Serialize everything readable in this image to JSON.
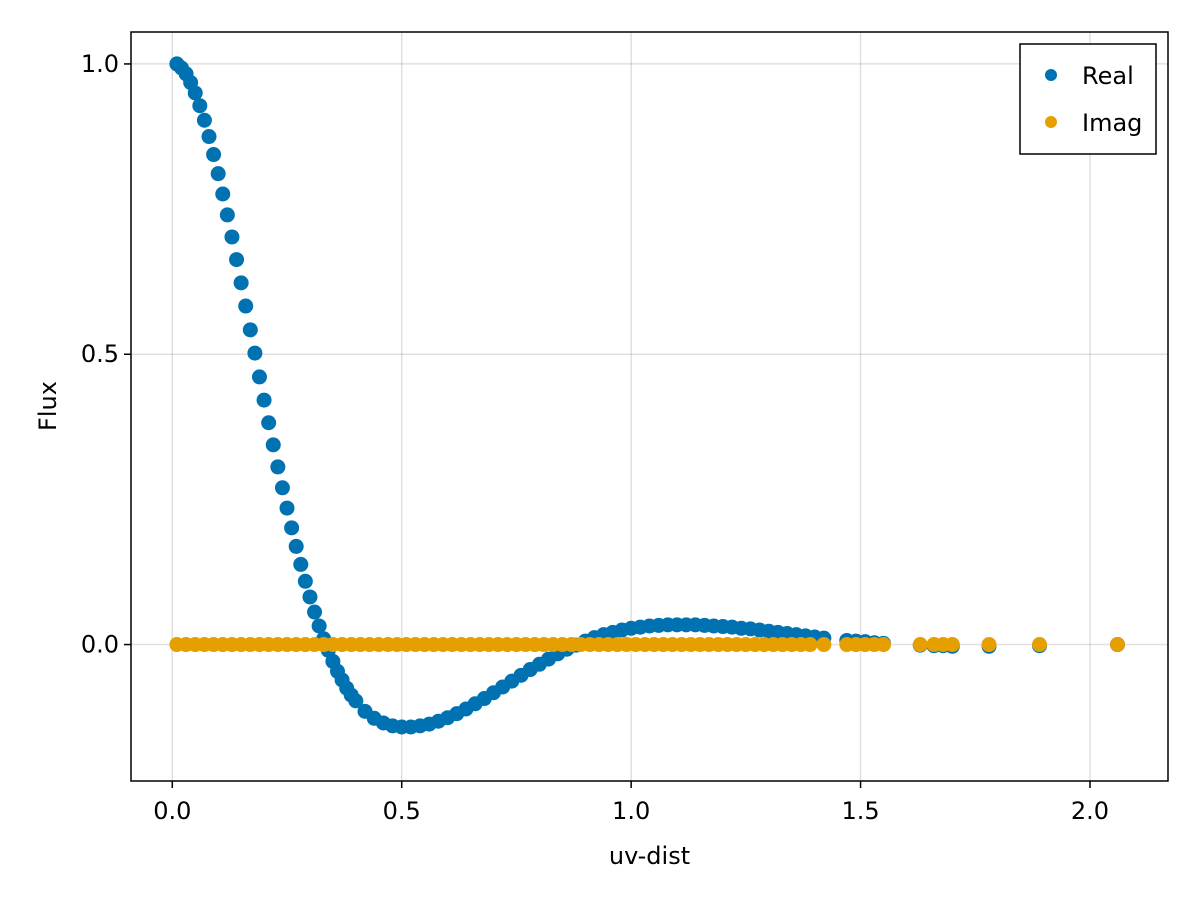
{
  "chart_data": {
    "type": "scatter",
    "title": "",
    "xlabel": "uv-dist",
    "ylabel": "Flux",
    "xlim": [
      -0.09,
      2.17
    ],
    "ylim": [
      -0.235,
      1.055
    ],
    "grid": true,
    "legend_position": "top-right",
    "x_ticks": [
      {
        "value": 0.0,
        "label": "0.0"
      },
      {
        "value": 0.5,
        "label": "0.5"
      },
      {
        "value": 1.0,
        "label": "1.0"
      },
      {
        "value": 1.5,
        "label": "1.5"
      },
      {
        "value": 2.0,
        "label": "2.0"
      }
    ],
    "y_ticks": [
      {
        "value": 0.0,
        "label": "0.0"
      },
      {
        "value": 0.5,
        "label": "0.5"
      },
      {
        "value": 1.0,
        "label": "1.0"
      }
    ],
    "series": [
      {
        "name": "Real",
        "color": "#0072b2",
        "x": [
          0.01,
          0.02,
          0.03,
          0.04,
          0.05,
          0.06,
          0.07,
          0.08,
          0.09,
          0.1,
          0.11,
          0.12,
          0.13,
          0.14,
          0.15,
          0.16,
          0.17,
          0.18,
          0.19,
          0.2,
          0.21,
          0.22,
          0.23,
          0.24,
          0.25,
          0.26,
          0.27,
          0.28,
          0.29,
          0.3,
          0.31,
          0.32,
          0.33,
          0.34,
          0.35,
          0.36,
          0.37,
          0.38,
          0.39,
          0.4,
          0.42,
          0.44,
          0.46,
          0.48,
          0.5,
          0.52,
          0.54,
          0.56,
          0.58,
          0.6,
          0.62,
          0.64,
          0.66,
          0.68,
          0.7,
          0.72,
          0.74,
          0.76,
          0.78,
          0.8,
          0.82,
          0.84,
          0.86,
          0.88,
          0.9,
          0.92,
          0.94,
          0.96,
          0.98,
          1.0,
          1.02,
          1.04,
          1.06,
          1.08,
          1.1,
          1.12,
          1.14,
          1.16,
          1.18,
          1.2,
          1.22,
          1.24,
          1.26,
          1.28,
          1.3,
          1.32,
          1.34,
          1.36,
          1.38,
          1.4,
          1.42,
          1.47,
          1.49,
          1.51,
          1.53,
          1.55,
          1.63,
          1.66,
          1.68,
          1.7,
          1.78,
          1.89,
          2.06
        ],
        "y": [
          1.0,
          0.993,
          0.983,
          0.968,
          0.95,
          0.928,
          0.903,
          0.875,
          0.844,
          0.811,
          0.776,
          0.74,
          0.702,
          0.663,
          0.623,
          0.583,
          0.542,
          0.502,
          0.461,
          0.421,
          0.382,
          0.344,
          0.306,
          0.27,
          0.235,
          0.201,
          0.169,
          0.138,
          0.109,
          0.082,
          0.056,
          0.032,
          0.01,
          -0.01,
          -0.029,
          -0.046,
          -0.061,
          -0.075,
          -0.087,
          -0.097,
          -0.115,
          -0.127,
          -0.135,
          -0.14,
          -0.142,
          -0.142,
          -0.14,
          -0.137,
          -0.132,
          -0.126,
          -0.119,
          -0.111,
          -0.102,
          -0.093,
          -0.083,
          -0.073,
          -0.063,
          -0.053,
          -0.043,
          -0.034,
          -0.025,
          -0.016,
          -0.008,
          -0.001,
          0.006,
          0.012,
          0.017,
          0.021,
          0.025,
          0.028,
          0.03,
          0.032,
          0.033,
          0.034,
          0.034,
          0.034,
          0.034,
          0.033,
          0.032,
          0.031,
          0.03,
          0.028,
          0.027,
          0.025,
          0.023,
          0.021,
          0.019,
          0.017,
          0.015,
          0.013,
          0.011,
          0.007,
          0.006,
          0.005,
          0.003,
          0.002,
          -0.001,
          -0.002,
          -0.002,
          -0.003,
          -0.003,
          -0.002,
          0.0
        ]
      },
      {
        "name": "Imag",
        "color": "#e69f00",
        "x": [
          0.01,
          0.03,
          0.05,
          0.07,
          0.09,
          0.11,
          0.13,
          0.15,
          0.17,
          0.19,
          0.21,
          0.23,
          0.25,
          0.27,
          0.29,
          0.31,
          0.33,
          0.35,
          0.37,
          0.39,
          0.41,
          0.43,
          0.45,
          0.47,
          0.49,
          0.51,
          0.53,
          0.55,
          0.57,
          0.59,
          0.61,
          0.63,
          0.65,
          0.67,
          0.69,
          0.71,
          0.73,
          0.75,
          0.77,
          0.79,
          0.81,
          0.83,
          0.85,
          0.87,
          0.89,
          0.91,
          0.93,
          0.95,
          0.97,
          0.99,
          1.01,
          1.03,
          1.05,
          1.07,
          1.09,
          1.11,
          1.13,
          1.15,
          1.17,
          1.19,
          1.21,
          1.23,
          1.25,
          1.27,
          1.29,
          1.31,
          1.33,
          1.35,
          1.37,
          1.39,
          1.42,
          1.47,
          1.49,
          1.51,
          1.53,
          1.55,
          1.63,
          1.66,
          1.68,
          1.7,
          1.78,
          1.89,
          2.06
        ],
        "y": [
          0,
          0,
          0,
          0,
          0,
          0,
          0,
          0,
          0,
          0,
          0,
          0,
          0,
          0,
          0,
          0,
          0,
          0,
          0,
          0,
          0,
          0,
          0,
          0,
          0,
          0,
          0,
          0,
          0,
          0,
          0,
          0,
          0,
          0,
          0,
          0,
          0,
          0,
          0,
          0,
          0,
          0,
          0,
          0,
          0,
          0,
          0,
          0,
          0,
          0,
          0,
          0,
          0,
          0,
          0,
          0,
          0,
          0,
          0,
          0,
          0,
          0,
          0,
          0,
          0,
          0,
          0,
          0,
          0,
          0,
          0,
          0,
          0,
          0,
          0,
          0,
          0,
          0,
          0,
          0,
          0,
          0,
          0
        ]
      }
    ]
  }
}
